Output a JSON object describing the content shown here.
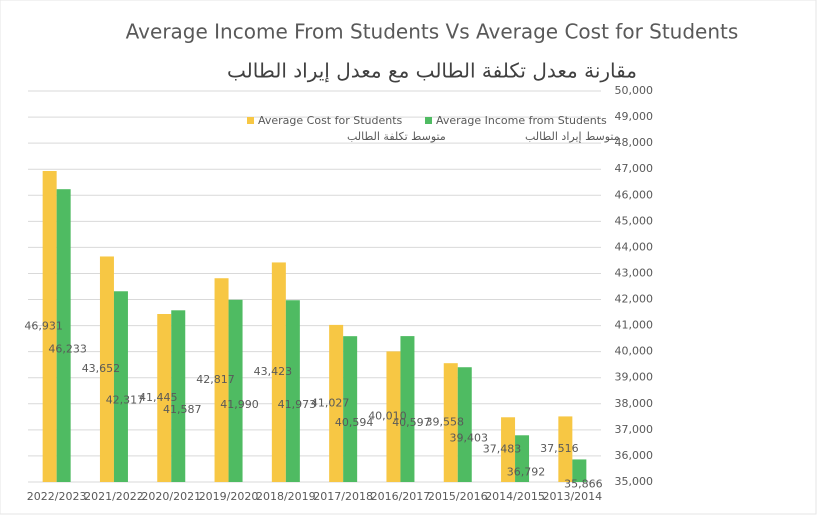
{
  "chart_data": {
    "type": "bar",
    "title": "Average Income From Students Vs Average Cost for Students",
    "subtitle": "مقارنة معدل تكلفة الطالب مع معدل إيراد الطالب",
    "categories": [
      "2022/2023",
      "2021/2022",
      "2020/2021",
      "2019/2020",
      "2018/2019",
      "2017/2018",
      "2016/2017",
      "2015/2016",
      "2014/2015",
      "2013/2014"
    ],
    "series": [
      {
        "name": "Average Cost for Students",
        "name_ar": "متوسط تكلفة الطالب",
        "color": "#f7c744",
        "values": [
          46931,
          43652,
          41445,
          42817,
          43423,
          41027,
          40010,
          39558,
          37483,
          37516
        ],
        "value_labels": [
          "46,931",
          "43,652",
          "41,445",
          "42,817",
          "43,423",
          "41,027",
          "40,010",
          "39,558",
          "37,483",
          "37,516"
        ]
      },
      {
        "name": "Average Income from Students",
        "name_ar": "متوسط إيراد الطالب",
        "color": "#4fbb62",
        "values": [
          46233,
          42317,
          41587,
          41990,
          41973,
          40594,
          40597,
          39403,
          36792,
          35866
        ],
        "value_labels": [
          "46,233",
          "42,317",
          "41,587",
          "41,990",
          "41,973",
          "40,594",
          "40,597",
          "39,403",
          "36,792",
          "35,866"
        ]
      }
    ],
    "ylim": [
      35000,
      50000
    ],
    "yticks": [
      {
        "value": 35000,
        "label": "35,000"
      },
      {
        "value": 36000,
        "label": "36,000"
      },
      {
        "value": 37000,
        "label": "37,000"
      },
      {
        "value": 38000,
        "label": "38,000"
      },
      {
        "value": 39000,
        "label": "39,000"
      },
      {
        "value": 40000,
        "label": "40,000"
      },
      {
        "value": 41000,
        "label": "41,000"
      },
      {
        "value": 42000,
        "label": "42,000"
      },
      {
        "value": 43000,
        "label": "43,000"
      },
      {
        "value": 44000,
        "label": "44,000"
      },
      {
        "value": 45000,
        "label": "45,000"
      },
      {
        "value": 46000,
        "label": "46,000"
      },
      {
        "value": 47000,
        "label": "47,000"
      },
      {
        "value": 48000,
        "label": "48,000"
      },
      {
        "value": 49000,
        "label": "49,000"
      },
      {
        "value": 50000,
        "label": "50,000"
      }
    ],
    "grid": true,
    "y_axis_side": "right",
    "legend": "top"
  }
}
